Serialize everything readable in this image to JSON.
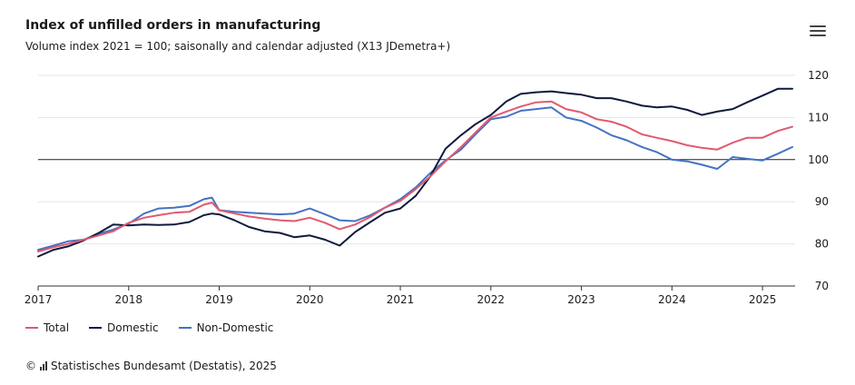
{
  "header": {
    "title": "Index of unfilled orders in manufacturing",
    "subtitle": "Volume index 2021 = 100; saisonally and calendar adjusted (X13 JDemetra+)"
  },
  "menu_icon": "hamburger-menu-icon",
  "colors": {
    "total": "#e05a6f",
    "domestic": "#0f1a3c",
    "non_domestic": "#4472c4",
    "reference": "#222222",
    "grid": "#e6e6e6",
    "axis": "#333333"
  },
  "legend": [
    {
      "key": "total",
      "label": "Total"
    },
    {
      "key": "domestic",
      "label": "Domestic"
    },
    {
      "key": "non_domestic",
      "label": "Non-Domestic"
    }
  ],
  "source": {
    "copyright": "©",
    "text": "Statistisches Bundesamt (Destatis), 2025"
  },
  "chart_data": {
    "type": "line",
    "title": "Index of unfilled orders in manufacturing",
    "subtitle": "Volume index 2021 = 100; saisonally and calendar adjusted (X13 JDemetra+)",
    "xlabel": "",
    "ylabel": "",
    "xlim": [
      2017.0,
      2025.36
    ],
    "ylim": [
      70,
      120
    ],
    "x_ticks": [
      2017,
      2018,
      2019,
      2020,
      2021,
      2022,
      2023,
      2024,
      2025
    ],
    "x_tick_labels": [
      "2017",
      "2018",
      "2019",
      "2020",
      "2021",
      "2022",
      "2023",
      "2024",
      "2025"
    ],
    "y_ticks": [
      70,
      80,
      90,
      100,
      110,
      120
    ],
    "y_tick_labels": [
      "70",
      "80",
      "90",
      "100",
      "110",
      "120"
    ],
    "reference_line": 100,
    "series": [
      {
        "name": "Total",
        "key": "total",
        "points": [
          [
            2017.0,
            78.2
          ],
          [
            2017.17,
            79.2
          ],
          [
            2017.33,
            80.0
          ],
          [
            2017.5,
            81.0
          ],
          [
            2017.67,
            82.0
          ],
          [
            2017.83,
            83.0
          ],
          [
            2018.0,
            85.0
          ],
          [
            2018.17,
            86.2
          ],
          [
            2018.33,
            86.8
          ],
          [
            2018.5,
            87.4
          ],
          [
            2018.67,
            87.6
          ],
          [
            2018.83,
            89.3
          ],
          [
            2018.92,
            89.8
          ],
          [
            2019.0,
            88.0
          ],
          [
            2019.17,
            87.2
          ],
          [
            2019.33,
            86.5
          ],
          [
            2019.5,
            86.0
          ],
          [
            2019.67,
            85.6
          ],
          [
            2019.83,
            85.4
          ],
          [
            2020.0,
            86.2
          ],
          [
            2020.17,
            85.0
          ],
          [
            2020.33,
            83.5
          ],
          [
            2020.5,
            84.6
          ],
          [
            2020.67,
            86.4
          ],
          [
            2020.83,
            88.6
          ],
          [
            2021.0,
            90.2
          ],
          [
            2021.17,
            93.0
          ],
          [
            2021.33,
            96.0
          ],
          [
            2021.5,
            99.6
          ],
          [
            2021.67,
            103.0
          ],
          [
            2021.83,
            106.4
          ],
          [
            2022.0,
            110.0
          ],
          [
            2022.17,
            111.4
          ],
          [
            2022.33,
            112.6
          ],
          [
            2022.5,
            113.6
          ],
          [
            2022.67,
            113.8
          ],
          [
            2022.83,
            112.0
          ],
          [
            2023.0,
            111.2
          ],
          [
            2023.17,
            109.6
          ],
          [
            2023.33,
            109.0
          ],
          [
            2023.5,
            107.8
          ],
          [
            2023.67,
            106.0
          ],
          [
            2023.83,
            105.2
          ],
          [
            2024.0,
            104.4
          ],
          [
            2024.17,
            103.4
          ],
          [
            2024.33,
            102.8
          ],
          [
            2024.5,
            102.4
          ],
          [
            2024.67,
            104.0
          ],
          [
            2024.83,
            105.2
          ],
          [
            2025.0,
            105.2
          ],
          [
            2025.17,
            106.8
          ],
          [
            2025.33,
            107.8
          ]
        ]
      },
      {
        "name": "Domestic",
        "key": "domestic",
        "points": [
          [
            2017.0,
            77.0
          ],
          [
            2017.17,
            78.6
          ],
          [
            2017.33,
            79.4
          ],
          [
            2017.5,
            80.8
          ],
          [
            2017.67,
            82.6
          ],
          [
            2017.83,
            84.6
          ],
          [
            2018.0,
            84.4
          ],
          [
            2018.17,
            84.6
          ],
          [
            2018.33,
            84.5
          ],
          [
            2018.5,
            84.6
          ],
          [
            2018.67,
            85.2
          ],
          [
            2018.83,
            86.8
          ],
          [
            2018.92,
            87.2
          ],
          [
            2019.0,
            87.0
          ],
          [
            2019.17,
            85.6
          ],
          [
            2019.33,
            84.0
          ],
          [
            2019.5,
            83.0
          ],
          [
            2019.67,
            82.6
          ],
          [
            2019.83,
            81.6
          ],
          [
            2020.0,
            82.0
          ],
          [
            2020.17,
            81.0
          ],
          [
            2020.33,
            79.6
          ],
          [
            2020.5,
            82.8
          ],
          [
            2020.67,
            85.2
          ],
          [
            2020.83,
            87.4
          ],
          [
            2021.0,
            88.4
          ],
          [
            2021.17,
            91.4
          ],
          [
            2021.33,
            96.0
          ],
          [
            2021.5,
            102.6
          ],
          [
            2021.67,
            105.8
          ],
          [
            2021.83,
            108.4
          ],
          [
            2022.0,
            110.6
          ],
          [
            2022.17,
            113.8
          ],
          [
            2022.33,
            115.6
          ],
          [
            2022.5,
            116.0
          ],
          [
            2022.67,
            116.2
          ],
          [
            2022.83,
            115.8
          ],
          [
            2023.0,
            115.4
          ],
          [
            2023.17,
            114.6
          ],
          [
            2023.33,
            114.6
          ],
          [
            2023.5,
            113.8
          ],
          [
            2023.67,
            112.8
          ],
          [
            2023.83,
            112.4
          ],
          [
            2024.0,
            112.6
          ],
          [
            2024.17,
            111.8
          ],
          [
            2024.33,
            110.6
          ],
          [
            2024.5,
            111.4
          ],
          [
            2024.67,
            112.0
          ],
          [
            2024.83,
            113.6
          ],
          [
            2025.0,
            115.2
          ],
          [
            2025.17,
            116.8
          ],
          [
            2025.33,
            116.8
          ]
        ]
      },
      {
        "name": "Non-Domestic",
        "key": "non_domestic",
        "points": [
          [
            2017.0,
            78.6
          ],
          [
            2017.17,
            79.6
          ],
          [
            2017.33,
            80.6
          ],
          [
            2017.5,
            81.0
          ],
          [
            2017.67,
            82.4
          ],
          [
            2017.83,
            83.4
          ],
          [
            2018.0,
            84.8
          ],
          [
            2018.17,
            87.2
          ],
          [
            2018.33,
            88.4
          ],
          [
            2018.5,
            88.6
          ],
          [
            2018.67,
            89.0
          ],
          [
            2018.83,
            90.6
          ],
          [
            2018.92,
            91.0
          ],
          [
            2019.0,
            88.0
          ],
          [
            2019.17,
            87.6
          ],
          [
            2019.33,
            87.4
          ],
          [
            2019.5,
            87.2
          ],
          [
            2019.67,
            87.0
          ],
          [
            2019.83,
            87.2
          ],
          [
            2020.0,
            88.4
          ],
          [
            2020.17,
            87.0
          ],
          [
            2020.33,
            85.6
          ],
          [
            2020.5,
            85.4
          ],
          [
            2020.67,
            86.8
          ],
          [
            2020.83,
            88.6
          ],
          [
            2021.0,
            90.6
          ],
          [
            2021.17,
            93.4
          ],
          [
            2021.33,
            96.8
          ],
          [
            2021.5,
            99.8
          ],
          [
            2021.67,
            102.4
          ],
          [
            2021.83,
            106.0
          ],
          [
            2022.0,
            109.6
          ],
          [
            2022.17,
            110.2
          ],
          [
            2022.33,
            111.6
          ],
          [
            2022.5,
            112.0
          ],
          [
            2022.67,
            112.4
          ],
          [
            2022.83,
            110.0
          ],
          [
            2023.0,
            109.2
          ],
          [
            2023.17,
            107.6
          ],
          [
            2023.33,
            105.8
          ],
          [
            2023.5,
            104.6
          ],
          [
            2023.67,
            103.0
          ],
          [
            2023.83,
            101.8
          ],
          [
            2024.0,
            100.0
          ],
          [
            2024.17,
            99.6
          ],
          [
            2024.33,
            98.8
          ],
          [
            2024.5,
            97.8
          ],
          [
            2024.67,
            100.6
          ],
          [
            2024.83,
            100.2
          ],
          [
            2025.0,
            99.8
          ],
          [
            2025.17,
            101.4
          ],
          [
            2025.33,
            103.0
          ]
        ]
      }
    ]
  }
}
